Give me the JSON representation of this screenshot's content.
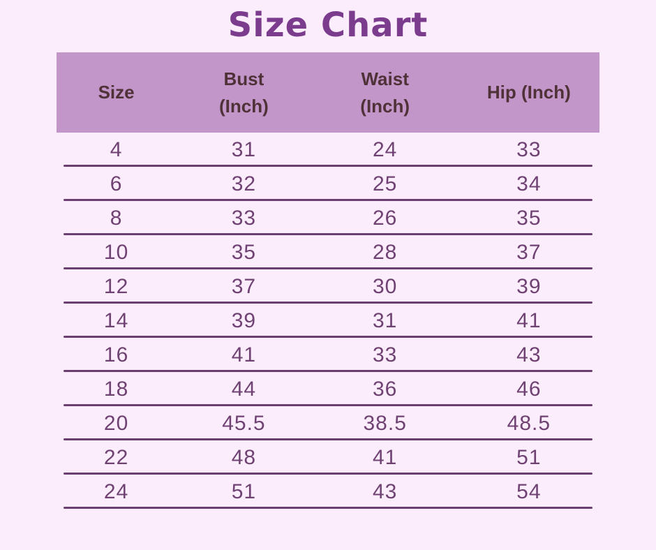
{
  "page": {
    "title": "Size Chart",
    "background_color": "#fbedfb",
    "title_color": "#7c3c8e"
  },
  "table": {
    "header": {
      "background_color": "#c296c9",
      "text_color": "#4f3138",
      "cells": [
        "Size",
        "Bust\n(Inch)",
        "Waist\n(Inch)",
        "Hip (Inch)"
      ]
    },
    "body": {
      "text_color": "#6f4273",
      "rule_color": "#6b3e71"
    }
  },
  "chart_data": {
    "type": "table",
    "title": "Size Chart",
    "columns": [
      "Size",
      "Bust (Inch)",
      "Waist (Inch)",
      "Hip (Inch)"
    ],
    "rows": [
      [
        "4",
        "31",
        "24",
        "33"
      ],
      [
        "6",
        "32",
        "25",
        "34"
      ],
      [
        "8",
        "33",
        "26",
        "35"
      ],
      [
        "10",
        "35",
        "28",
        "37"
      ],
      [
        "12",
        "37",
        "30",
        "39"
      ],
      [
        "14",
        "39",
        "31",
        "41"
      ],
      [
        "16",
        "41",
        "33",
        "43"
      ],
      [
        "18",
        "44",
        "36",
        "46"
      ],
      [
        "20",
        "45.5",
        "38.5",
        "48.5"
      ],
      [
        "22",
        "48",
        "41",
        "51"
      ],
      [
        "24",
        "51",
        "43",
        "54"
      ]
    ]
  }
}
